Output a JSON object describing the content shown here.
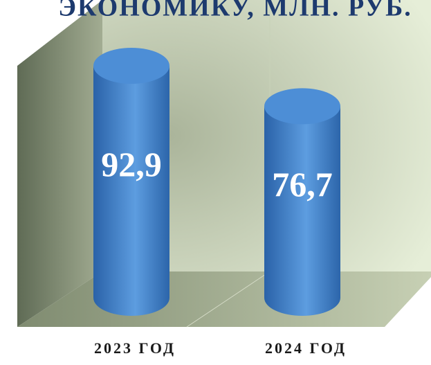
{
  "chart_data": {
    "type": "cylinder",
    "title": "ЭКОНОМИКУ, МЛН. РУБ.",
    "categories": [
      "2023 ГОД",
      "2024 ГОД"
    ],
    "values": [
      92.9,
      76.7
    ],
    "value_labels": [
      "92,9",
      "76,7"
    ],
    "color": "#3a7cc4"
  }
}
